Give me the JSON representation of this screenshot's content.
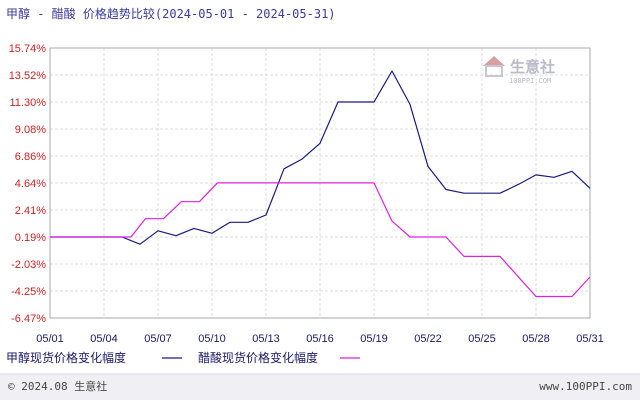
{
  "header": {
    "title": "甲醇 - 醋酸 价格趋势比较(2024-05-01 - 2024-05-31)"
  },
  "footer": {
    "copyright": "© 2024.08 生意社",
    "site": "www.100PPI.com"
  },
  "watermark": {
    "brand": "生意社",
    "url": "100PPI.COM"
  },
  "colors": {
    "series1": "#1a1a80",
    "series2": "#e020e0",
    "axis": "#aaaaaa",
    "grid": "#dddddd"
  },
  "chart_data": {
    "type": "line",
    "title": "甲醇 - 醋酸 价格趋势比较(2024-05-01 - 2024-05-31)",
    "xlabel": "",
    "ylabel": "",
    "x_range": [
      1,
      31
    ],
    "ylim": [
      -6.47,
      15.74
    ],
    "y_ticks": [
      "15.74%",
      "13.52%",
      "11.30%",
      "9.08%",
      "6.86%",
      "4.64%",
      "2.41%",
      "0.19%",
      "-2.03%",
      "-4.25%",
      "-6.47%"
    ],
    "y_tick_values": [
      15.74,
      13.52,
      11.3,
      9.08,
      6.86,
      4.64,
      2.41,
      0.19,
      -2.03,
      -4.25,
      -6.47
    ],
    "x_ticks": [
      "05/01",
      "05/04",
      "05/07",
      "05/10",
      "05/13",
      "05/16",
      "05/19",
      "05/22",
      "05/25",
      "05/28",
      "05/31"
    ],
    "x_tick_values": [
      1,
      4,
      7,
      10,
      13,
      16,
      19,
      22,
      25,
      28,
      31
    ],
    "grid": true,
    "legend_position": "bottom-left",
    "series": [
      {
        "name": "甲醇现货价格变化幅度",
        "points": [
          [
            1,
            0.19
          ],
          [
            5,
            0.19
          ],
          [
            6,
            -0.4
          ],
          [
            7,
            0.7
          ],
          [
            8,
            0.3
          ],
          [
            9,
            0.9
          ],
          [
            10,
            0.5
          ],
          [
            11,
            1.4
          ],
          [
            12,
            1.4
          ],
          [
            13,
            2.0
          ],
          [
            14,
            5.8
          ],
          [
            15,
            6.6
          ],
          [
            16,
            7.9
          ],
          [
            17,
            11.3
          ],
          [
            18,
            11.3
          ],
          [
            19,
            11.3
          ],
          [
            20,
            13.85
          ],
          [
            21,
            11.1
          ],
          [
            22,
            6.0
          ],
          [
            23,
            4.1
          ],
          [
            24,
            3.8
          ],
          [
            25,
            3.8
          ],
          [
            26,
            3.8
          ],
          [
            27,
            4.5
          ],
          [
            28,
            5.3
          ],
          [
            29,
            5.1
          ],
          [
            30,
            5.6
          ],
          [
            31,
            4.2
          ]
        ]
      },
      {
        "name": "醋酸现货价格变化幅度",
        "points": [
          [
            1,
            0.19
          ],
          [
            5,
            0.19
          ],
          [
            5.5,
            0.19
          ],
          [
            6.3,
            1.7
          ],
          [
            7.3,
            1.7
          ],
          [
            8.3,
            3.1
          ],
          [
            9.3,
            3.1
          ],
          [
            10.3,
            4.64
          ],
          [
            19,
            4.64
          ],
          [
            20,
            1.5
          ],
          [
            21,
            0.19
          ],
          [
            23,
            0.19
          ],
          [
            24,
            -1.4
          ],
          [
            26,
            -1.4
          ],
          [
            28,
            -4.7
          ],
          [
            30,
            -4.7
          ],
          [
            31,
            -3.1
          ]
        ]
      }
    ]
  }
}
